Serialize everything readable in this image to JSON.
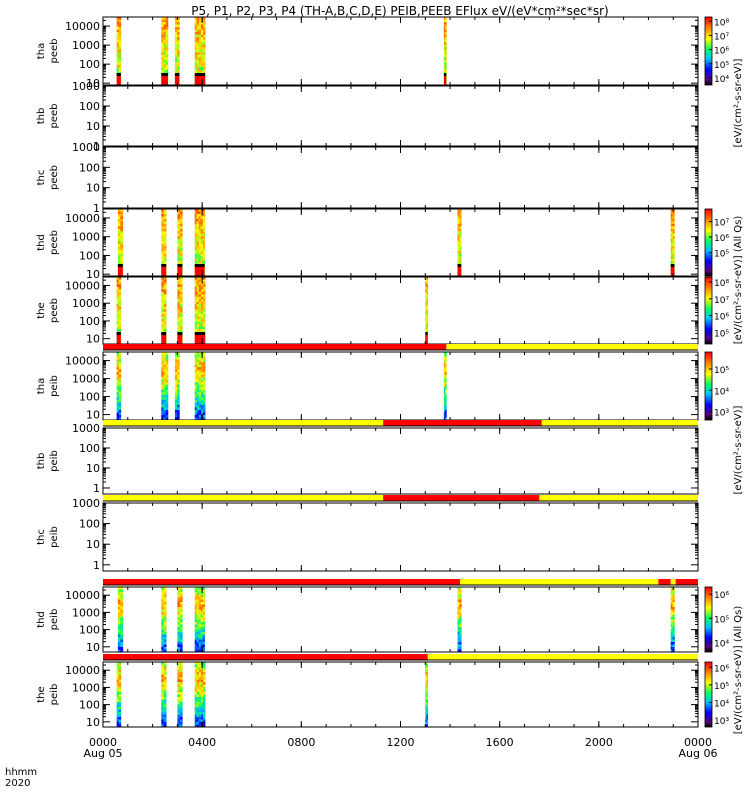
{
  "title": "P5, P1, P2, P3, P4 (TH-A,B,C,D,E) PEIB,PEEB EFlux eV/(eV*cm²*sec*sr)",
  "x_axis": {
    "row_label_1": "hhmm",
    "row_label_2": "2020",
    "ticks": [
      "0000",
      "0400",
      "0800",
      "1200",
      "1600",
      "2000",
      "0000"
    ],
    "tick_hours": [
      0,
      4,
      8,
      12,
      16,
      20,
      24
    ],
    "minor_step_hours": 1,
    "date_labels": [
      "Aug 05",
      "Aug 06"
    ],
    "date_hours": [
      0,
      24
    ],
    "range_hours": [
      0,
      24
    ]
  },
  "colorbar_labels": {
    "peeb_upper": "[eV/(cm²-s-sr-eV)]",
    "peeb_lower": "[eV/(cm²-s-sr-eV)] (All Qs)",
    "peib_upper": "[eV/(cm²-s-sr-eV)]",
    "peib_lower": "[eV/(cm²-s-sr-eV)] (All Qs)"
  },
  "chart_data": [
    {
      "type": "heatmap",
      "probe": "tha",
      "label": [
        "tha",
        "peeb"
      ],
      "ylog": true,
      "ylim": [
        8,
        30000
      ],
      "yticks": [
        "10",
        "100",
        "1000",
        "10000"
      ],
      "colorbar": {
        "ticks": [
          "10⁴",
          "10⁵",
          "10⁶",
          "10⁷",
          "10⁸"
        ],
        "range_exp": [
          3.5,
          8.3
        ]
      },
      "bursts_hours": [
        [
          0.55,
          0.72
        ],
        [
          2.35,
          2.62
        ],
        [
          2.9,
          3.08
        ],
        [
          3.7,
          4.12
        ],
        [
          13.75,
          13.85
        ]
      ],
      "flags": []
    },
    {
      "type": "heatmap",
      "probe": "thb",
      "label": [
        "thb",
        "peeb"
      ],
      "ylog": true,
      "ylim": [
        1,
        1000
      ],
      "yticks": [
        "1",
        "10",
        "100",
        "1000"
      ],
      "colorbar": null,
      "bursts_hours": [],
      "flags": []
    },
    {
      "type": "heatmap",
      "probe": "thc",
      "label": [
        "thc",
        "peeb"
      ],
      "ylog": true,
      "ylim": [
        1,
        1000
      ],
      "yticks": [
        "1",
        "10",
        "100",
        "1000"
      ],
      "colorbar": null,
      "bursts_hours": [],
      "flags": []
    },
    {
      "type": "heatmap",
      "probe": "thd",
      "label": [
        "thd",
        "peeb"
      ],
      "ylog": true,
      "ylim": [
        8,
        30000
      ],
      "yticks": [
        "10",
        "100",
        "1000",
        "10000"
      ],
      "colorbar": {
        "ticks": [
          "10⁵",
          "10⁶",
          "10⁷"
        ],
        "range_exp": [
          3.5,
          7.8
        ]
      },
      "bursts_hours": [
        [
          0.6,
          0.8
        ],
        [
          2.35,
          2.55
        ],
        [
          3.0,
          3.2
        ],
        [
          3.7,
          4.1
        ],
        [
          14.3,
          14.45
        ],
        [
          22.9,
          23.05
        ]
      ],
      "flags": []
    },
    {
      "type": "heatmap",
      "probe": "the",
      "label": [
        "the",
        "peeb"
      ],
      "ylog": true,
      "ylim": [
        5,
        30000
      ],
      "yticks": [
        "10",
        "100",
        "1000",
        "10000"
      ],
      "colorbar": {
        "ticks": [
          "10⁵",
          "10⁶",
          "10⁷",
          "10⁸"
        ],
        "range_exp": [
          4.3,
          8.3
        ]
      },
      "bursts_hours": [
        [
          0.55,
          0.72
        ],
        [
          2.35,
          2.55
        ],
        [
          3.0,
          3.2
        ],
        [
          3.7,
          4.12
        ],
        [
          13.0,
          13.1
        ]
      ],
      "flags": []
    },
    {
      "type": "heatmap",
      "probe": "tha",
      "label": [
        "tha",
        "peib"
      ],
      "ylog": true,
      "ylim": [
        5,
        30000
      ],
      "yticks": [
        "10",
        "100",
        "1000",
        "10000"
      ],
      "colorbar": {
        "ticks": [
          "10³",
          "10⁴",
          "10⁵"
        ],
        "range_exp": [
          2.6,
          5.8
        ]
      },
      "bursts_hours": [
        [
          0.55,
          0.72
        ],
        [
          2.35,
          2.62
        ],
        [
          2.9,
          3.08
        ],
        [
          3.7,
          4.12
        ],
        [
          13.75,
          13.85
        ]
      ],
      "flags": [
        {
          "from": 0,
          "to": 13.85,
          "color": "#ff0000"
        },
        {
          "from": 13.85,
          "to": 24,
          "color": "#ffff00"
        }
      ]
    },
    {
      "type": "heatmap",
      "probe": "thb",
      "label": [
        "thb",
        "peib"
      ],
      "ylog": true,
      "ylim": [
        0.5,
        1000
      ],
      "yticks": [
        "1",
        "10",
        "100",
        "1000"
      ],
      "colorbar": null,
      "bursts_hours": [],
      "flags": [
        {
          "from": 0,
          "to": 11.3,
          "color": "#ffff00"
        },
        {
          "from": 11.3,
          "to": 17.7,
          "color": "#ff0000"
        },
        {
          "from": 17.7,
          "to": 24,
          "color": "#ffff00"
        }
      ]
    },
    {
      "type": "heatmap",
      "probe": "thc",
      "label": [
        "thc",
        "peib"
      ],
      "ylog": true,
      "ylim": [
        0.5,
        1000
      ],
      "yticks": [
        "1",
        "10",
        "100",
        "1000"
      ],
      "colorbar": null,
      "bursts_hours": [],
      "flags": [
        {
          "from": 0,
          "to": 11.3,
          "color": "#ffff00"
        },
        {
          "from": 11.3,
          "to": 17.6,
          "color": "#ff0000"
        },
        {
          "from": 17.6,
          "to": 24,
          "color": "#ffff00"
        }
      ]
    },
    {
      "type": "heatmap",
      "probe": "thd",
      "label": [
        "thd",
        "peib"
      ],
      "ylog": true,
      "ylim": [
        5,
        30000
      ],
      "yticks": [
        "10",
        "100",
        "1000",
        "10000"
      ],
      "colorbar": {
        "ticks": [
          "10⁴",
          "10⁵",
          "10⁶"
        ],
        "range_exp": [
          3.6,
          6.3
        ]
      },
      "bursts_hours": [
        [
          0.6,
          0.8
        ],
        [
          2.35,
          2.55
        ],
        [
          3.0,
          3.2
        ],
        [
          3.7,
          4.1
        ],
        [
          14.3,
          14.45
        ],
        [
          22.9,
          23.05
        ]
      ],
      "flags": [
        {
          "from": 0,
          "to": 14.4,
          "color": "#ff0000"
        },
        {
          "from": 14.4,
          "to": 22.4,
          "color": "#ffff00"
        },
        {
          "from": 22.4,
          "to": 22.9,
          "color": "#ff0000"
        },
        {
          "from": 22.9,
          "to": 23.1,
          "color": "#ffff00"
        },
        {
          "from": 23.1,
          "to": 24,
          "color": "#ff0000"
        }
      ]
    },
    {
      "type": "heatmap",
      "probe": "the",
      "label": [
        "the",
        "peib"
      ],
      "ylog": true,
      "ylim": [
        5,
        30000
      ],
      "yticks": [
        "10",
        "100",
        "1000",
        "10000"
      ],
      "colorbar": {
        "ticks": [
          "10³",
          "10⁴",
          "10⁵",
          "10⁶"
        ],
        "range_exp": [
          2.6,
          6.3
        ]
      },
      "bursts_hours": [
        [
          0.55,
          0.72
        ],
        [
          2.35,
          2.55
        ],
        [
          3.0,
          3.2
        ],
        [
          3.7,
          4.12
        ],
        [
          13.0,
          13.1
        ]
      ],
      "flags": [
        {
          "from": 0,
          "to": 13.1,
          "color": "#ff0000"
        },
        {
          "from": 13.1,
          "to": 24,
          "color": "#ffff00"
        }
      ]
    }
  ]
}
